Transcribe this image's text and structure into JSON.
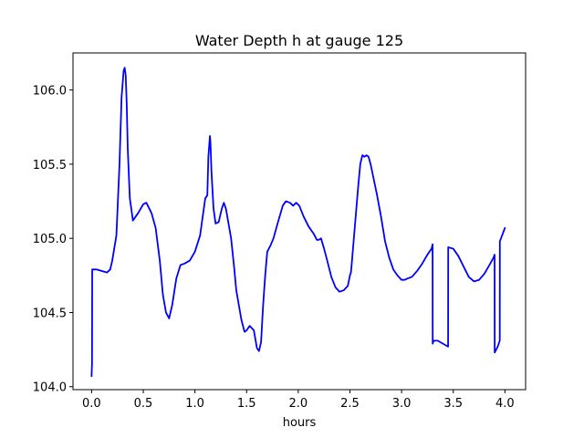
{
  "chart_data": {
    "type": "line",
    "title": "Water Depth h at gauge 125",
    "xlabel": "hours",
    "ylabel": "",
    "xlim": [
      -0.18,
      4.2
    ],
    "ylim": [
      103.98,
      106.25
    ],
    "xticks": [
      0.0,
      0.5,
      1.0,
      1.5,
      2.0,
      2.5,
      3.0,
      3.5,
      4.0
    ],
    "xtick_labels": [
      "0.0",
      "0.5",
      "1.0",
      "1.5",
      "2.0",
      "2.5",
      "3.0",
      "3.5",
      "4.0"
    ],
    "yticks": [
      104.0,
      104.5,
      105.0,
      105.5,
      106.0
    ],
    "ytick_labels": [
      "104.0",
      "104.5",
      "105.0",
      "105.5",
      "106.0"
    ],
    "grid": false,
    "legend": "none",
    "series": [
      {
        "color": "#0000ff",
        "x": [
          0.0,
          0.002,
          0.004,
          0.006,
          0.008,
          0.01,
          0.05,
          0.1,
          0.15,
          0.18,
          0.2,
          0.24,
          0.27,
          0.29,
          0.31,
          0.32,
          0.33,
          0.34,
          0.35,
          0.37,
          0.4,
          0.45,
          0.5,
          0.53,
          0.58,
          0.62,
          0.66,
          0.69,
          0.72,
          0.75,
          0.78,
          0.82,
          0.86,
          0.9,
          0.95,
          1.0,
          1.05,
          1.1,
          1.12,
          1.13,
          1.145,
          1.15,
          1.16,
          1.18,
          1.2,
          1.23,
          1.26,
          1.28,
          1.3,
          1.35,
          1.38,
          1.4,
          1.45,
          1.48,
          1.5,
          1.53,
          1.57,
          1.6,
          1.62,
          1.64,
          1.66,
          1.68,
          1.7,
          1.73,
          1.76,
          1.8,
          1.85,
          1.88,
          1.92,
          1.95,
          1.98,
          2.01,
          2.05,
          2.1,
          2.15,
          2.18,
          2.2,
          2.22,
          2.25,
          2.28,
          2.32,
          2.36,
          2.4,
          2.44,
          2.48,
          2.5,
          2.51,
          2.52,
          2.55,
          2.58,
          2.6,
          2.62,
          2.64,
          2.66,
          2.68,
          2.7,
          2.73,
          2.76,
          2.8,
          2.84,
          2.88,
          2.92,
          2.96,
          3.0,
          3.03,
          3.06,
          3.1,
          3.15,
          3.2,
          3.25,
          3.29,
          3.3,
          3.301,
          3.31,
          3.35,
          3.4,
          3.45,
          3.451,
          3.5,
          3.55,
          3.6,
          3.65,
          3.7,
          3.75,
          3.8,
          3.85,
          3.89,
          3.9,
          3.901,
          3.93,
          3.95,
          3.951,
          4.0
        ],
        "y": [
          104.07,
          104.12,
          104.15,
          104.79,
          104.79,
          104.79,
          104.79,
          104.78,
          104.77,
          104.79,
          104.85,
          105.02,
          105.5,
          105.95,
          106.13,
          106.15,
          106.1,
          105.9,
          105.6,
          105.27,
          105.12,
          105.17,
          105.23,
          105.24,
          105.17,
          105.07,
          104.85,
          104.62,
          104.5,
          104.46,
          104.55,
          104.73,
          104.82,
          104.83,
          104.85,
          104.91,
          105.02,
          105.27,
          105.29,
          105.55,
          105.69,
          105.65,
          105.45,
          105.2,
          105.1,
          105.11,
          105.2,
          105.24,
          105.2,
          105.0,
          104.8,
          104.65,
          104.45,
          104.37,
          104.38,
          104.41,
          104.38,
          104.26,
          104.24,
          104.3,
          104.55,
          104.75,
          104.91,
          104.95,
          105.0,
          105.1,
          105.22,
          105.25,
          105.24,
          105.22,
          105.24,
          105.22,
          105.15,
          105.08,
          105.03,
          104.99,
          104.99,
          105.0,
          104.93,
          104.85,
          104.74,
          104.67,
          104.64,
          104.65,
          104.68,
          104.75,
          104.77,
          104.85,
          105.1,
          105.35,
          105.5,
          105.56,
          105.55,
          105.56,
          105.55,
          105.5,
          105.4,
          105.3,
          105.15,
          104.98,
          104.87,
          104.79,
          104.75,
          104.72,
          104.72,
          104.73,
          104.74,
          104.78,
          104.83,
          104.89,
          104.93,
          104.96,
          104.29,
          104.31,
          104.31,
          104.29,
          104.27,
          104.94,
          104.93,
          104.88,
          104.81,
          104.74,
          104.71,
          104.72,
          104.76,
          104.82,
          104.87,
          104.89,
          104.23,
          104.27,
          104.31,
          104.98,
          105.07
        ]
      }
    ]
  }
}
